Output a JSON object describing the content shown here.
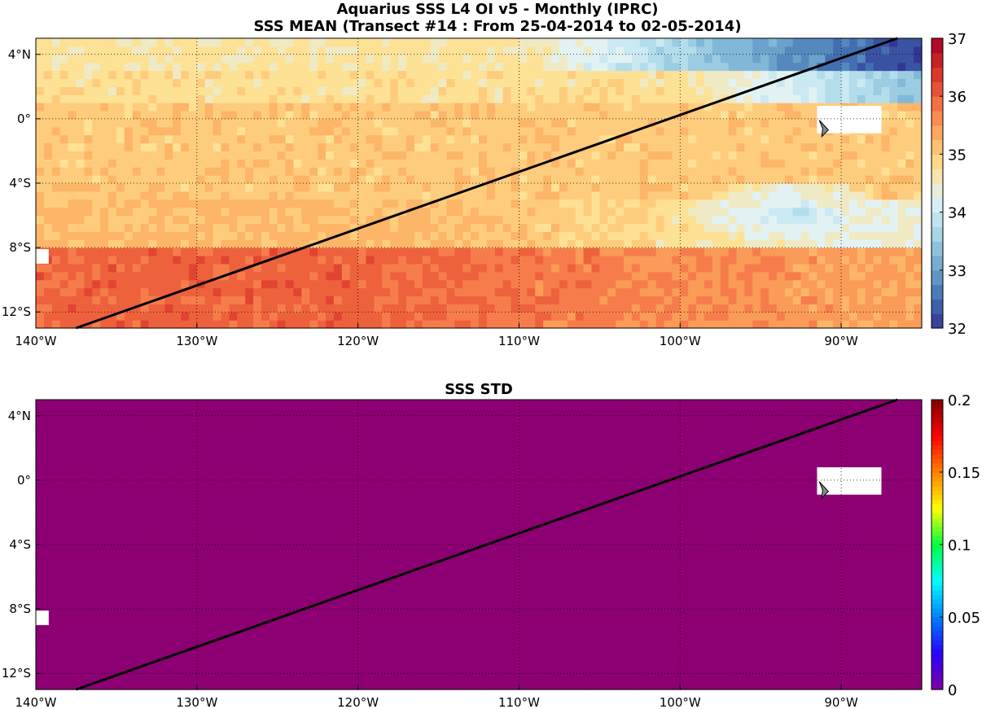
{
  "figure": {
    "title_line1": "Aquarius SSS L4 OI v5 - Monthly (IPRC)",
    "title_line2": "SSS MEAN (Transect #14 : From 25-04-2014 to 02-05-2014)"
  },
  "colors": {
    "mean_colormap": [
      "#313695",
      "#4575b4",
      "#74add1",
      "#abd9e9",
      "#e0f3f8",
      "#fee090",
      "#fdae61",
      "#f46d43",
      "#d73027",
      "#a50026"
    ],
    "std_fill": "#8c0073",
    "transect_line": "#000000",
    "gridline": "#000000",
    "land_marker": "#888888"
  },
  "maps": [
    {
      "id": "mean",
      "title": "",
      "lon_range": [
        -140,
        -85
      ],
      "lat_range": [
        -13,
        5
      ],
      "x_ticks": [
        {
          "value": -140,
          "label": "140°W"
        },
        {
          "value": -130,
          "label": "130°W"
        },
        {
          "value": -120,
          "label": "120°W"
        },
        {
          "value": -110,
          "label": "110°W"
        },
        {
          "value": -100,
          "label": "100°W"
        },
        {
          "value": -90,
          "label": "90°W"
        }
      ],
      "y_ticks": [
        {
          "value": 4,
          "label": "4°N"
        },
        {
          "value": 0,
          "label": "0°"
        },
        {
          "value": -4,
          "label": "4°S"
        },
        {
          "value": -8,
          "label": "8°S"
        },
        {
          "value": -12,
          "label": "12°S"
        }
      ],
      "colorbar": {
        "min": 32,
        "max": 37,
        "levels": 20,
        "colormap": "spectral",
        "ticks": [
          {
            "value": 32,
            "label": "32"
          },
          {
            "value": 33,
            "label": "33"
          },
          {
            "value": 34,
            "label": "34"
          },
          {
            "value": 35,
            "label": "35"
          },
          {
            "value": 36,
            "label": "36"
          },
          {
            "value": 37,
            "label": "37"
          }
        ]
      }
    },
    {
      "id": "std",
      "title": "SSS STD",
      "lon_range": [
        -140,
        -85
      ],
      "lat_range": [
        -13,
        5
      ],
      "x_ticks": [
        {
          "value": -140,
          "label": "140°W"
        },
        {
          "value": -130,
          "label": "130°W"
        },
        {
          "value": -120,
          "label": "120°W"
        },
        {
          "value": -110,
          "label": "110°W"
        },
        {
          "value": -100,
          "label": "100°W"
        },
        {
          "value": -90,
          "label": "90°W"
        }
      ],
      "y_ticks": [
        {
          "value": 4,
          "label": "4°N"
        },
        {
          "value": 0,
          "label": "0°"
        },
        {
          "value": -4,
          "label": "4°S"
        },
        {
          "value": -8,
          "label": "8°S"
        },
        {
          "value": -12,
          "label": "12°S"
        }
      ],
      "colorbar": {
        "min": 0,
        "max": 0.2,
        "levels": 64,
        "colormap": "jet",
        "ticks": [
          {
            "value": 0,
            "label": "0"
          },
          {
            "value": 0.05,
            "label": "0.05"
          },
          {
            "value": 0.1,
            "label": "0.1"
          },
          {
            "value": 0.15,
            "label": "0.15"
          },
          {
            "value": 0.2,
            "label": "0.2"
          }
        ]
      }
    }
  ],
  "transect": {
    "start": {
      "lon": -137.5,
      "lat": -13
    },
    "end": {
      "lon": -86.5,
      "lat": 5
    }
  },
  "sss_mean_field": {
    "description_bands": [
      {
        "lat_max": 5,
        "lat_min": 3,
        "value_west": 34.8,
        "value_east": 32.2
      },
      {
        "lat_max": 3,
        "lat_min": 1,
        "value_west": 35.0,
        "value_east": 33.5
      },
      {
        "lat_max": 1,
        "lat_min": -5,
        "value_west": 35.2,
        "value_east": 35.0
      },
      {
        "lat_max": -5,
        "lat_min": -8,
        "value_west": 35.5,
        "value_east": 34.5
      },
      {
        "lat_max": -8,
        "lat_min": -13,
        "value_west": 36.0,
        "value_east": 35.5
      }
    ],
    "fresh_pool": {
      "lon": -93,
      "lat": -6,
      "value": 34.0
    }
  },
  "sss_std_field": {
    "value": 0
  }
}
